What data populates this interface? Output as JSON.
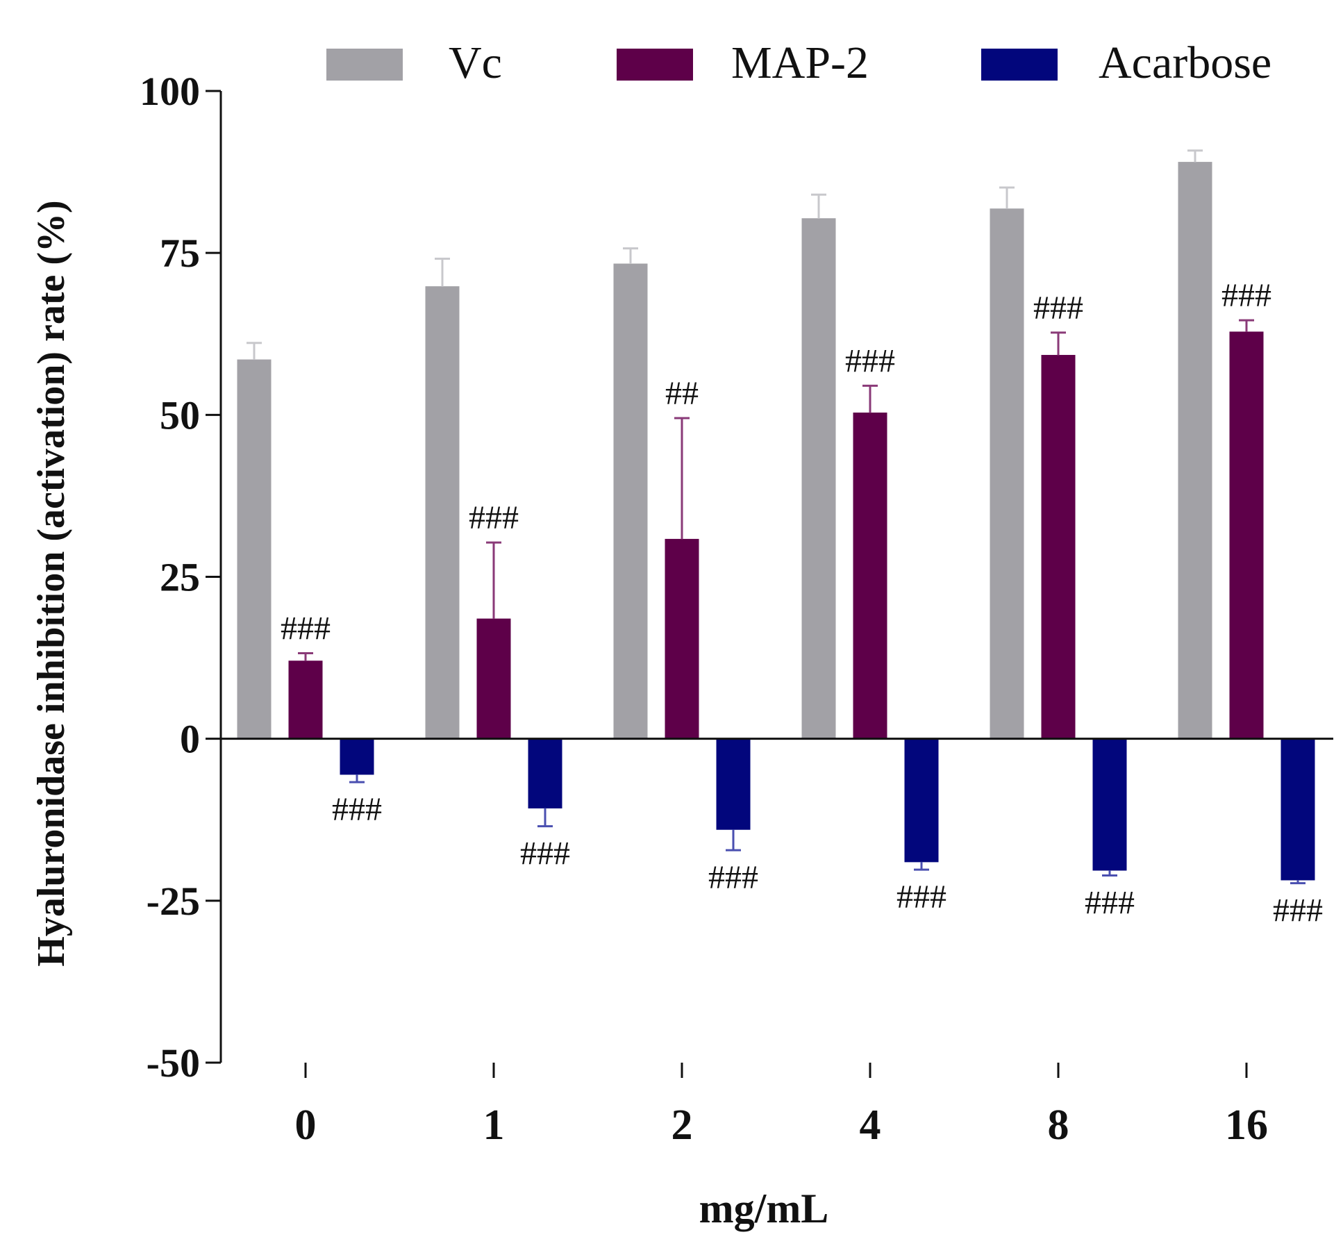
{
  "chart_data": {
    "type": "bar",
    "xlabel": "mg/mL",
    "ylabel": "Hyaluronidase inhibition (activation) rate (%)",
    "ylim": [
      -50,
      100
    ],
    "yticks": [
      -50,
      -25,
      0,
      25,
      50,
      75,
      100
    ],
    "categories": [
      "0",
      "1",
      "2",
      "4",
      "8",
      "16"
    ],
    "legend_position": "top",
    "series": [
      {
        "name": "Vc",
        "color": "#a2a1a6",
        "values": [
          58.5,
          69.8,
          73.3,
          80.3,
          81.8,
          89.0
        ],
        "errors": [
          2.6,
          4.3,
          2.4,
          3.7,
          3.3,
          1.8
        ],
        "annotations": [
          "",
          "",
          "",
          "",
          "",
          ""
        ]
      },
      {
        "name": "MAP-2",
        "color": "#5e0049",
        "values": [
          12.0,
          18.5,
          30.8,
          50.3,
          59.2,
          62.8
        ],
        "errors": [
          1.2,
          11.8,
          18.7,
          4.2,
          3.5,
          1.8
        ],
        "annotations": [
          "###",
          "###",
          "##",
          "###",
          "###",
          "###"
        ]
      },
      {
        "name": "Acarbose",
        "color": "#02067c",
        "values": [
          -5.5,
          -10.7,
          -14.0,
          -19.0,
          -20.3,
          -21.8
        ],
        "errors": [
          1.2,
          2.8,
          3.2,
          1.2,
          0.8,
          0.5
        ],
        "annotations": [
          "###",
          "###",
          "###",
          "###",
          "###",
          "###"
        ]
      }
    ]
  }
}
